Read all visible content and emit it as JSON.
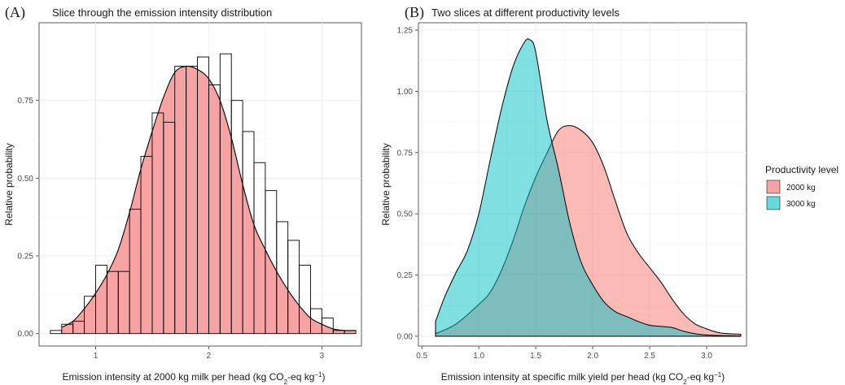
{
  "chart_data": [
    {
      "panel": "A",
      "type": "bar",
      "title": "Slice through the emission intensity distribution",
      "xlabel": "Emission intensity at 2000 kg milk per head (kg CO₂-eq kg⁻¹)",
      "ylabel": "Relative probability",
      "xlim": [
        0.5,
        3.35
      ],
      "ylim": [
        -0.04,
        1.0
      ],
      "x_ticks": [
        1,
        2,
        3
      ],
      "x_tick_labels": [
        "1",
        "2",
        "3"
      ],
      "y_ticks": [
        0,
        0.25,
        0.5,
        0.75
      ],
      "y_tick_labels": [
        "0.00",
        "0.25",
        "0.50",
        "0.75"
      ],
      "grid": true,
      "histogram": {
        "bin_width": 0.1,
        "bin_left_edges": [
          0.6,
          0.7,
          0.8,
          0.9,
          1.0,
          1.1,
          1.2,
          1.3,
          1.4,
          1.5,
          1.6,
          1.7,
          1.8,
          1.9,
          2.0,
          2.1,
          2.2,
          2.3,
          2.4,
          2.5,
          2.6,
          2.7,
          2.8,
          2.9,
          3.0,
          3.1,
          3.2
        ],
        "values": [
          0.01,
          0.03,
          0.04,
          0.12,
          0.22,
          0.2,
          0.2,
          0.4,
          0.57,
          0.71,
          0.68,
          0.86,
          0.86,
          0.89,
          0.8,
          0.9,
          0.75,
          0.65,
          0.55,
          0.46,
          0.36,
          0.3,
          0.22,
          0.08,
          0.05,
          0.01,
          0.01
        ]
      },
      "density": {
        "fill": "#F8A3A3",
        "x": [
          0.7,
          0.8,
          0.9,
          1.0,
          1.1,
          1.2,
          1.3,
          1.4,
          1.5,
          1.6,
          1.7,
          1.8,
          1.9,
          2.0,
          2.1,
          2.2,
          2.3,
          2.4,
          2.5,
          2.6,
          2.7,
          2.8,
          2.9,
          3.0,
          3.1,
          3.2,
          3.3
        ],
        "y": [
          0.02,
          0.04,
          0.08,
          0.13,
          0.19,
          0.27,
          0.39,
          0.53,
          0.65,
          0.76,
          0.84,
          0.86,
          0.85,
          0.82,
          0.75,
          0.63,
          0.48,
          0.35,
          0.27,
          0.2,
          0.14,
          0.09,
          0.05,
          0.03,
          0.015,
          0.01,
          0.01
        ]
      }
    },
    {
      "panel": "B",
      "type": "area",
      "title": "Two slices at different productivity levels",
      "xlabel": "Emission intensity at specific milk yield per head (kg CO₂-eq kg⁻¹)",
      "ylabel": "Relative probability",
      "xlim": [
        0.47,
        3.35
      ],
      "ylim": [
        -0.04,
        1.28
      ],
      "x_ticks": [
        0.5,
        1.0,
        1.5,
        2.0,
        2.5,
        3.0
      ],
      "x_tick_labels": [
        "0.5",
        "1.0",
        "1.5",
        "2.0",
        "2.5",
        "3.0"
      ],
      "y_ticks": [
        0,
        0.25,
        0.5,
        0.75,
        1.0,
        1.25
      ],
      "y_tick_labels": [
        "0.00",
        "0.25",
        "0.50",
        "0.75",
        "1.00",
        "1.25"
      ],
      "grid": true,
      "legend": {
        "title": "Productivity level",
        "position": "right"
      },
      "series": [
        {
          "name": "2000 kg",
          "color": "#F8766D",
          "x": [
            0.62,
            0.8,
            1.0,
            1.1,
            1.2,
            1.3,
            1.4,
            1.5,
            1.6,
            1.7,
            1.8,
            1.9,
            2.0,
            2.1,
            2.2,
            2.3,
            2.4,
            2.5,
            2.6,
            2.7,
            2.8,
            2.9,
            3.0,
            3.1,
            3.2,
            3.3
          ],
          "y": [
            0.01,
            0.05,
            0.13,
            0.18,
            0.27,
            0.39,
            0.53,
            0.65,
            0.75,
            0.84,
            0.86,
            0.84,
            0.79,
            0.69,
            0.55,
            0.42,
            0.34,
            0.28,
            0.22,
            0.15,
            0.09,
            0.05,
            0.03,
            0.015,
            0.01,
            0.008
          ]
        },
        {
          "name": "3000 kg",
          "color": "#00BFC4",
          "x": [
            0.62,
            0.7,
            0.8,
            0.9,
            1.0,
            1.1,
            1.2,
            1.3,
            1.4,
            1.45,
            1.5,
            1.6,
            1.7,
            1.8,
            1.9,
            2.0,
            2.1,
            2.2,
            2.3,
            2.4,
            2.5,
            2.6,
            2.7,
            2.8,
            2.9,
            3.0,
            3.1,
            3.2,
            3.3
          ],
          "y": [
            0.06,
            0.16,
            0.26,
            0.35,
            0.5,
            0.72,
            0.93,
            1.1,
            1.2,
            1.21,
            1.16,
            0.88,
            0.68,
            0.46,
            0.3,
            0.21,
            0.14,
            0.1,
            0.08,
            0.06,
            0.045,
            0.04,
            0.035,
            0.02,
            0.01,
            0.005,
            0.003,
            0.002,
            0.001
          ]
        }
      ]
    }
  ],
  "colors": {
    "panel_background": "#ffffff",
    "grid_major": "#EBEBEB",
    "grid_minor": "#F5F5F5",
    "outline": "#1a1a1a",
    "histogram_bar_stroke": "#000000"
  }
}
